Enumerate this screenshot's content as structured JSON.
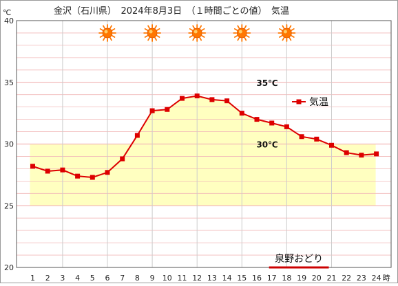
{
  "chart_data": {
    "type": "line",
    "title": "金沢（石川県）　2024年8月3日　（１時間ごとの値）　気温",
    "unit_label": "℃",
    "x_unit_label": "時",
    "x": [
      1,
      2,
      3,
      4,
      5,
      6,
      7,
      8,
      9,
      10,
      11,
      12,
      13,
      14,
      15,
      16,
      17,
      18,
      19,
      20,
      21,
      22,
      23,
      24
    ],
    "x_tick_labels": [
      "1",
      "2",
      "3",
      "4",
      "5",
      "6",
      "7",
      "8",
      "9",
      "10",
      "11",
      "12",
      "13",
      "14",
      "15",
      "16",
      "17",
      "18",
      "19",
      "20",
      "21",
      "22",
      "23",
      "24"
    ],
    "ylim": [
      20,
      40
    ],
    "y_ticks": [
      20,
      25,
      30,
      35,
      40
    ],
    "y_tick_labels": [
      "20",
      "25",
      "30",
      "35",
      "40"
    ],
    "series": [
      {
        "name": "気温",
        "color": "#dd0000",
        "values": [
          28.2,
          27.8,
          27.9,
          27.4,
          27.3,
          27.7,
          28.8,
          30.7,
          32.7,
          32.8,
          33.7,
          33.9,
          33.6,
          33.5,
          32.5,
          32.0,
          31.7,
          31.4,
          30.6,
          30.4,
          29.9,
          29.3,
          29.1,
          29.2
        ]
      }
    ],
    "fill_range": [
      25,
      30
    ],
    "fill_x_range": [
      1,
      24
    ],
    "threshold_labels": [
      {
        "value": 35,
        "text": "35℃"
      },
      {
        "value": 30,
        "text": "30℃"
      }
    ],
    "weather_icon": "sun-icon",
    "weather_icon_color": "#ff7700",
    "weather_icon_hours": [
      6,
      9,
      12,
      15,
      18
    ],
    "event": {
      "text": "泉野おどり",
      "color": "#cc0000",
      "x_from": 17,
      "x_to": 21
    },
    "legend_position": "right",
    "grid": true,
    "grid_color": "#f2b8b8",
    "vgrid_color": "#cccccc",
    "fill_color": "#ffffc0"
  }
}
